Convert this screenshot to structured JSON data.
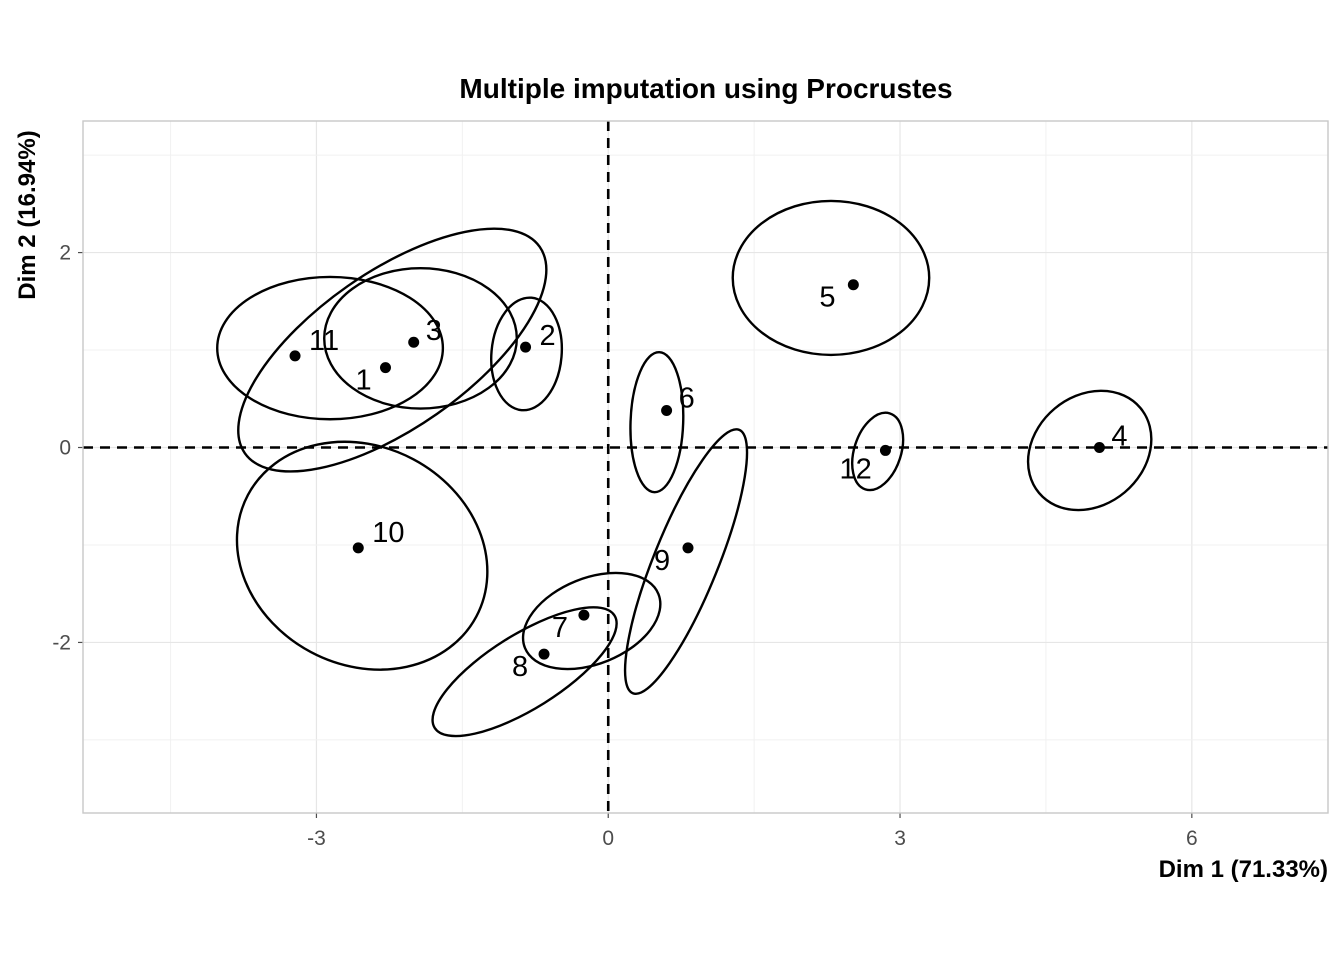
{
  "chart_data": {
    "type": "scatter",
    "title": "Multiple imputation using Procrustes",
    "xlabel": "Dim 1 (71.33%)",
    "ylabel": "Dim 2 (16.94%)",
    "xlim": [
      -5.4,
      7.4
    ],
    "ylim": [
      -3.75,
      3.35
    ],
    "xticks": [
      -3,
      0,
      3,
      6
    ],
    "yticks": [
      -2,
      0,
      2
    ],
    "xtick_labels": [
      "-3",
      "0",
      "3",
      "6"
    ],
    "ytick_labels": [
      "-2",
      "0",
      "2"
    ],
    "grid": true,
    "reference_lines": {
      "x": 0,
      "y": 0,
      "style": "dashed"
    },
    "points": [
      {
        "label": "1",
        "x": -2.29,
        "y": 0.82
      },
      {
        "label": "2",
        "x": -0.85,
        "y": 1.03
      },
      {
        "label": "3",
        "x": -2.0,
        "y": 1.08
      },
      {
        "label": "4",
        "x": 5.05,
        "y": 0.0
      },
      {
        "label": "5",
        "x": 2.52,
        "y": 1.67
      },
      {
        "label": "6",
        "x": 0.6,
        "y": 0.38
      },
      {
        "label": "7",
        "x": -0.25,
        "y": -1.72
      },
      {
        "label": "8",
        "x": -0.66,
        "y": -2.12
      },
      {
        "label": "9",
        "x": 0.82,
        "y": -1.03
      },
      {
        "label": "10",
        "x": -2.57,
        "y": -1.03
      },
      {
        "label": "11",
        "x": -3.22,
        "y": 0.94
      },
      {
        "label": "12",
        "x": 2.85,
        "y": -0.03
      }
    ],
    "ellipses": [
      {
        "label": "1",
        "cx": -2.22,
        "cy": 1.0,
        "rx": 1.85,
        "ry": 0.8,
        "angle": 35
      },
      {
        "label": "2",
        "cx": -0.84,
        "cy": 0.96,
        "rx": 0.58,
        "ry": 0.36,
        "angle": 85
      },
      {
        "label": "3",
        "cx": -1.93,
        "cy": 1.12,
        "rx": 0.99,
        "ry": 0.72,
        "angle": 0
      },
      {
        "label": "4",
        "cx": 4.95,
        "cy": -0.03,
        "rx": 0.68,
        "ry": 0.56,
        "angle": 40
      },
      {
        "label": "5",
        "cx": 2.29,
        "cy": 1.74,
        "rx": 1.01,
        "ry": 0.79,
        "angle": 0
      },
      {
        "label": "6",
        "cx": 0.5,
        "cy": 0.26,
        "rx": 0.72,
        "ry": 0.27,
        "angle": 88
      },
      {
        "label": "7",
        "cx": -0.17,
        "cy": -1.78,
        "rx": 0.74,
        "ry": 0.44,
        "angle": 22
      },
      {
        "label": "8",
        "cx": -0.86,
        "cy": -2.3,
        "rx": 1.09,
        "ry": 0.38,
        "angle": 32
      },
      {
        "label": "9",
        "cx": 0.8,
        "cy": -1.17,
        "rx": 1.46,
        "ry": 0.33,
        "angle": 68
      },
      {
        "label": "10",
        "cx": -2.53,
        "cy": -1.11,
        "rx": 1.33,
        "ry": 1.12,
        "angle": -28
      },
      {
        "label": "11",
        "cx": -2.86,
        "cy": 1.02,
        "rx": 1.16,
        "ry": 0.73,
        "angle": 0
      },
      {
        "label": "12",
        "cx": 2.77,
        "cy": -0.04,
        "rx": 0.41,
        "ry": 0.24,
        "angle": 72
      }
    ]
  }
}
